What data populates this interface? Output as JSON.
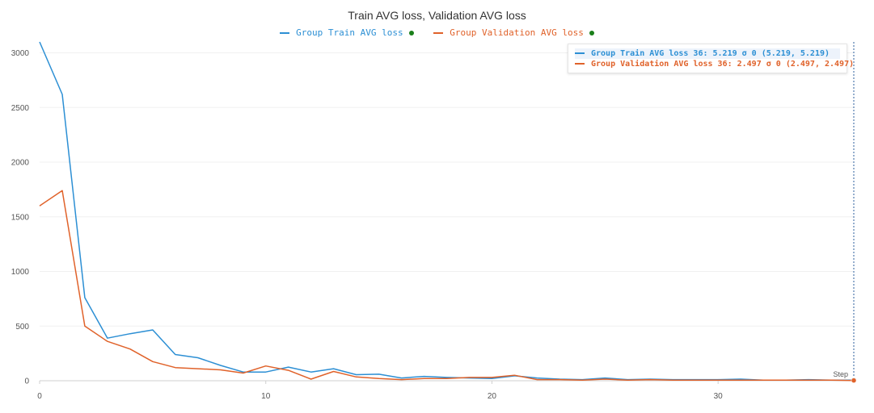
{
  "title": "Train AVG loss, Validation AVG loss",
  "legend": [
    {
      "name": "Group Train AVG loss",
      "color": "#2c8fd4"
    },
    {
      "name": "Group Validation AVG loss",
      "color": "#e0622a"
    }
  ],
  "tooltip": {
    "rows": [
      {
        "text": "Group Train AVG loss 36: 5.219 σ 0 (5.219, 5.219)",
        "color": "#2c8fd4"
      },
      {
        "text": "Group Validation AVG loss 36: 2.497 σ 0 (2.497, 2.497)",
        "color": "#e0622a"
      }
    ]
  },
  "chart_data": {
    "type": "line",
    "title": "Train AVG loss, Validation AVG loss",
    "xlabel": "Step",
    "ylabel": "",
    "xlim": [
      0,
      36
    ],
    "ylim": [
      0,
      3100
    ],
    "x_ticks": [
      0,
      10,
      20,
      30
    ],
    "y_ticks": [
      0,
      500,
      1000,
      1500,
      2000,
      2500,
      3000
    ],
    "grid": true,
    "legend_position": "top-center",
    "x": [
      0,
      1,
      2,
      3,
      4,
      5,
      6,
      7,
      8,
      9,
      10,
      11,
      12,
      13,
      14,
      15,
      16,
      17,
      18,
      19,
      20,
      21,
      22,
      23,
      24,
      25,
      26,
      27,
      28,
      29,
      30,
      31,
      32,
      33,
      34,
      35,
      36
    ],
    "series": [
      {
        "name": "Group Train AVG loss",
        "color": "#2c8fd4",
        "values": [
          3100,
          2620,
          760,
          390,
          430,
          465,
          240,
          210,
          140,
          80,
          80,
          125,
          80,
          110,
          55,
          60,
          25,
          40,
          30,
          25,
          20,
          45,
          25,
          15,
          10,
          25,
          10,
          15,
          10,
          10,
          10,
          15,
          5,
          5,
          10,
          5,
          5.219
        ]
      },
      {
        "name": "Group Validation AVG loss",
        "color": "#e0622a",
        "values": [
          1600,
          1740,
          500,
          360,
          290,
          175,
          120,
          110,
          100,
          70,
          135,
          95,
          15,
          85,
          35,
          20,
          10,
          20,
          20,
          30,
          30,
          50,
          10,
          10,
          5,
          15,
          5,
          10,
          5,
          5,
          5,
          5,
          5,
          5,
          5,
          5,
          2.497
        ]
      }
    ]
  }
}
